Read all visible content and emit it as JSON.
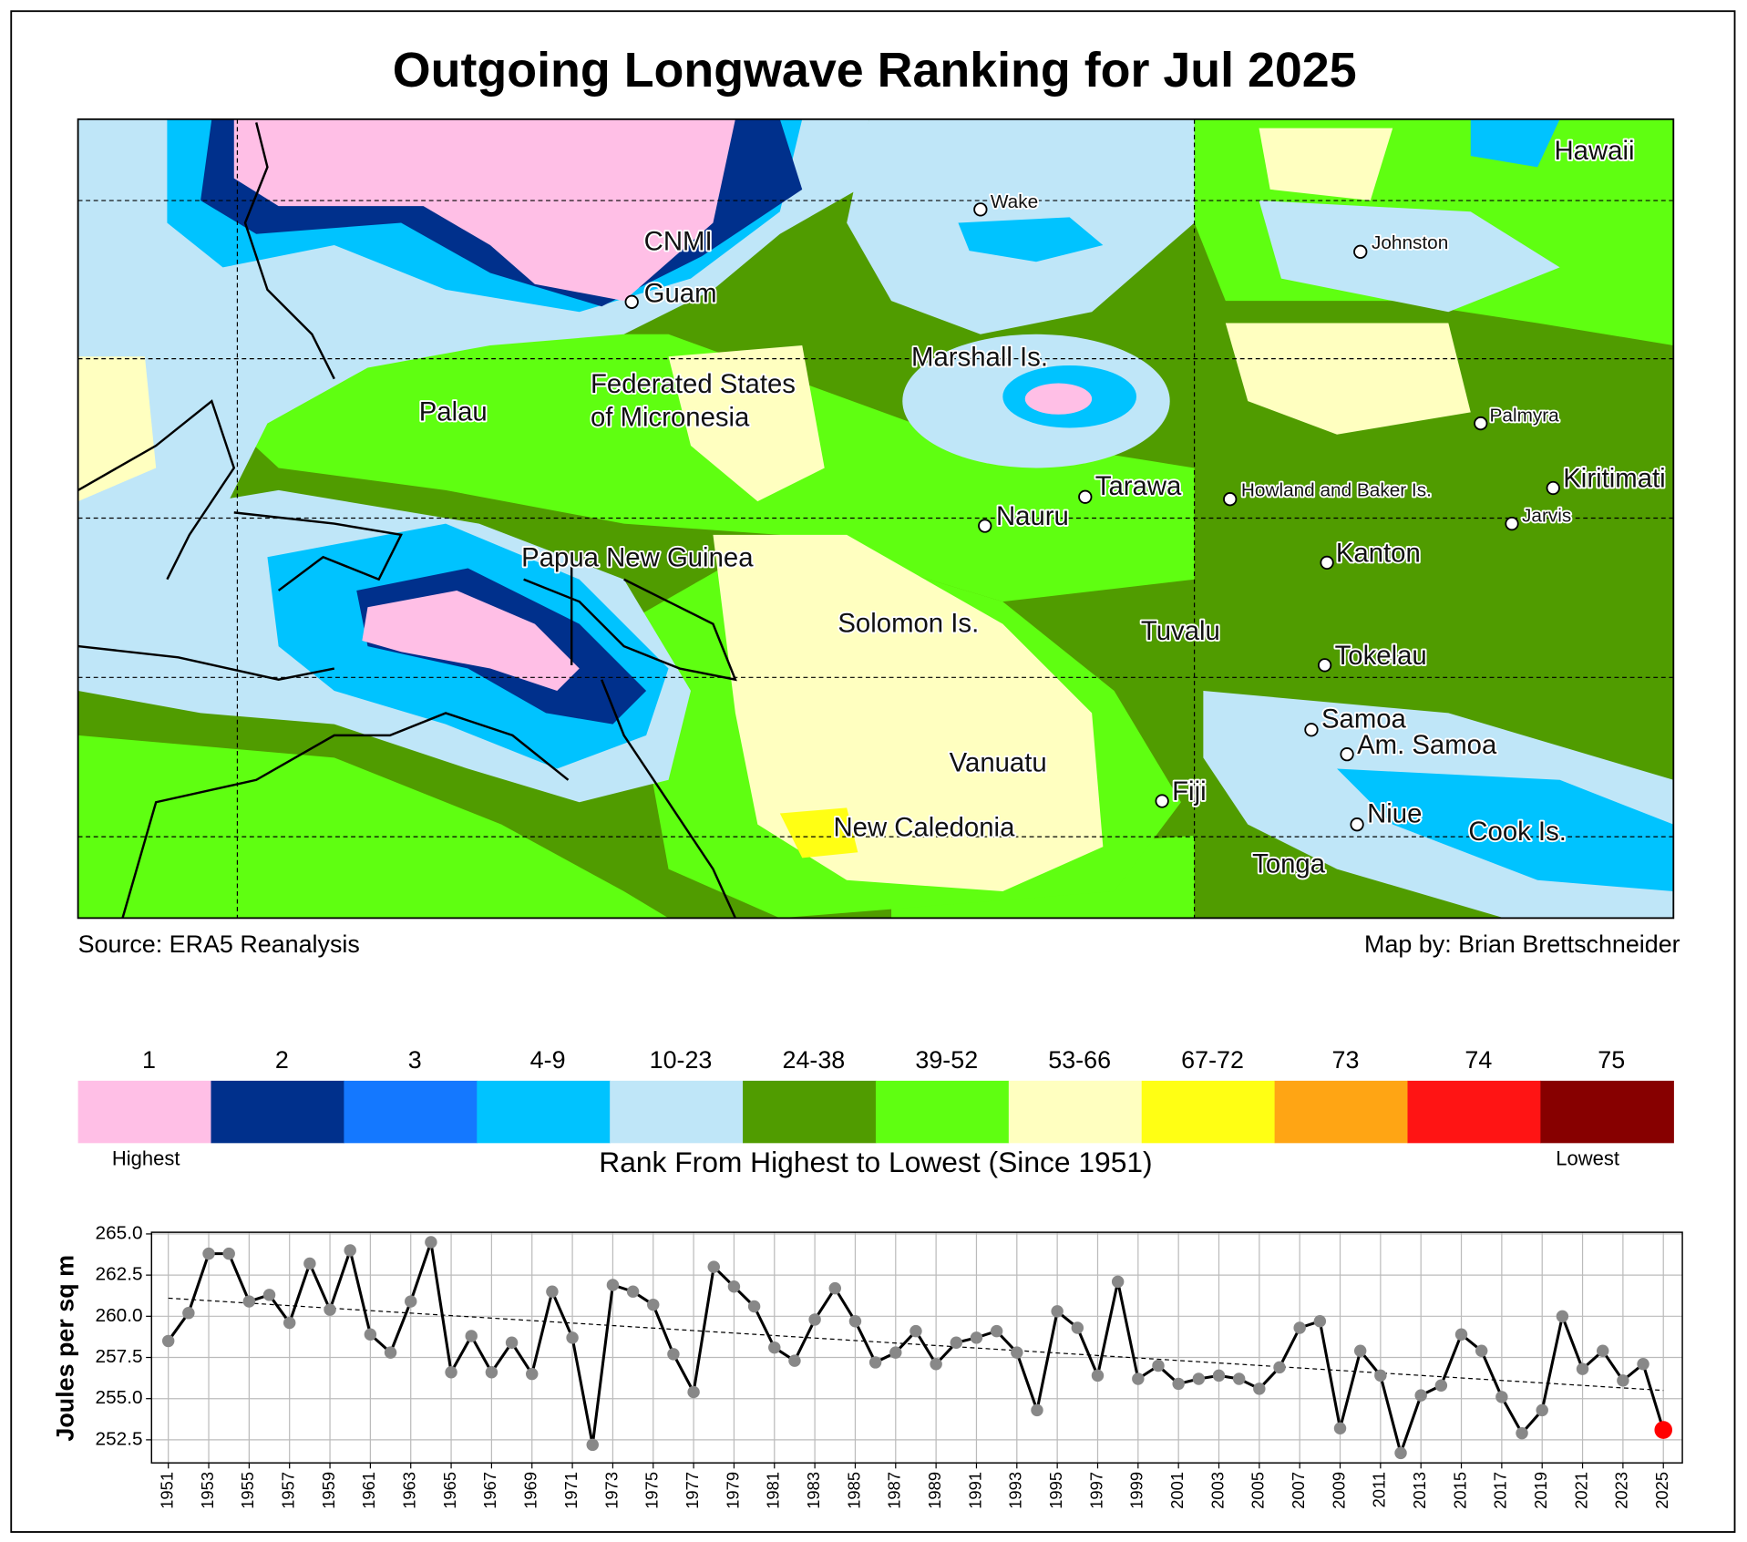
{
  "chart_data": [
    {
      "type": "map",
      "title": "Outgoing Longwave Ranking for Jul 2025",
      "map_labels": [
        "CNMI",
        "Guam",
        "Wake",
        "Johnston",
        "Hawaii",
        "Marshall Is.",
        "Palau",
        "Federated States",
        "of Micronesia",
        "Palmyra",
        "Tarawa",
        "Howland and Baker Is.",
        "Kiritimati",
        "Jarvis",
        "Nauru",
        "Kanton",
        "Papua New Guinea",
        "Solomon Is.",
        "Tuvalu",
        "Tokelau",
        "Samoa",
        "Am. Samoa",
        "Vanuatu",
        "Fiji",
        "Niue",
        "New Caledonia",
        "Cook Is.",
        "Tonga"
      ],
      "source": "Source: ERA5 Reanalysis",
      "credit": "Map by: Brian Brettschneider",
      "legend": {
        "labels": [
          "1",
          "2",
          "3",
          "4-9",
          "10-23",
          "24-38",
          "39-52",
          "53-66",
          "67-72",
          "73",
          "74",
          "75"
        ],
        "colors": [
          "#ffbfe6",
          "#00308c",
          "#1478ff",
          "#00c3ff",
          "#bfe6f8",
          "#509c00",
          "#5fff11",
          "#ffffc0",
          "#ffff14",
          "#ffa514",
          "#ff1414",
          "#870000"
        ],
        "low_end": "Highest",
        "high_end": "Lowest",
        "title": "Rank From Highest to Lowest (Since 1951)"
      }
    },
    {
      "type": "line",
      "ylabel": "Joules per sq m",
      "x": [
        1951,
        1952,
        1953,
        1954,
        1955,
        1956,
        1957,
        1958,
        1959,
        1960,
        1961,
        1962,
        1963,
        1964,
        1965,
        1966,
        1967,
        1968,
        1969,
        1970,
        1971,
        1972,
        1973,
        1974,
        1975,
        1976,
        1977,
        1978,
        1979,
        1980,
        1981,
        1982,
        1983,
        1984,
        1985,
        1986,
        1987,
        1988,
        1989,
        1990,
        1991,
        1992,
        1993,
        1994,
        1995,
        1996,
        1997,
        1998,
        1999,
        2000,
        2001,
        2002,
        2003,
        2004,
        2005,
        2006,
        2007,
        2008,
        2009,
        2010,
        2011,
        2012,
        2013,
        2014,
        2015,
        2016,
        2017,
        2018,
        2019,
        2020,
        2021,
        2022,
        2023,
        2024,
        2025
      ],
      "series": [
        {
          "color": "#000000",
          "marker_color": "#888888",
          "last_color": "#ff0000",
          "values": [
            258.5,
            260.2,
            263.8,
            263.8,
            260.9,
            261.3,
            259.6,
            263.2,
            260.4,
            264.0,
            258.9,
            257.8,
            260.9,
            264.5,
            256.6,
            258.8,
            256.6,
            258.4,
            256.5,
            261.5,
            258.7,
            252.2,
            261.9,
            261.5,
            260.7,
            257.7,
            255.4,
            263.0,
            261.8,
            260.6,
            258.1,
            257.3,
            259.8,
            261.7,
            259.7,
            257.2,
            257.8,
            259.1,
            257.1,
            258.4,
            258.7,
            259.1,
            257.8,
            254.3,
            260.3,
            259.3,
            256.4,
            262.1,
            256.2,
            257.0,
            255.9,
            256.2,
            256.4,
            256.2,
            255.6,
            256.9,
            259.3,
            259.7,
            253.2,
            257.9,
            256.4,
            251.7,
            255.2,
            255.8,
            258.9,
            257.9,
            255.1,
            252.9,
            254.3,
            260.0,
            256.8,
            257.9,
            256.1,
            257.1,
            253.1
          ]
        }
      ],
      "trend": [
        261.1,
        255.5
      ],
      "xlim": [
        1950.17,
        2025.94
      ],
      "ylim": [
        251.1,
        265.1
      ],
      "xticks": [
        1951,
        1953,
        1955,
        1957,
        1959,
        1961,
        1963,
        1965,
        1967,
        1969,
        1971,
        1973,
        1975,
        1977,
        1979,
        1981,
        1983,
        1985,
        1987,
        1989,
        1991,
        1993,
        1995,
        1997,
        1999,
        2001,
        2003,
        2005,
        2007,
        2009,
        2011,
        2013,
        2015,
        2017,
        2019,
        2021,
        2023,
        2025
      ],
      "yticks": [
        252.5,
        {
          "value": 255,
          "label": "255.0"
        },
        257.5,
        {
          "value": 260,
          "label": "260.0"
        },
        262.5,
        {
          "value": 265,
          "label": "265.0"
        }
      ],
      "grid": true
    }
  ]
}
